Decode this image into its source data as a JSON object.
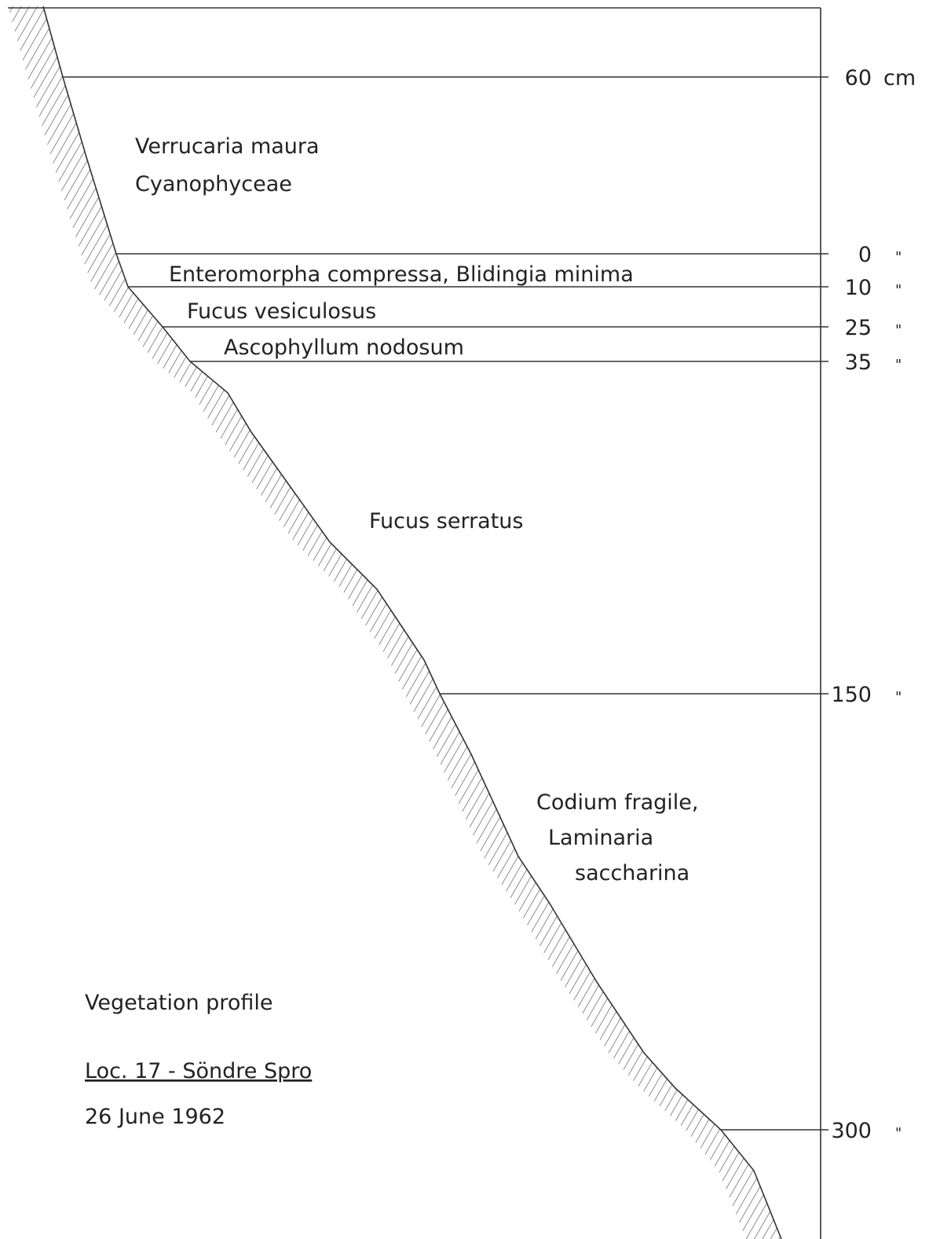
{
  "levels": [
    {
      "number": "60",
      "unit": "cm"
    },
    {
      "number": "0",
      "unit": "\""
    },
    {
      "number": "10",
      "unit": "\""
    },
    {
      "number": "25",
      "unit": "\""
    },
    {
      "number": "35",
      "unit": "\""
    },
    {
      "number": "150",
      "unit": "\""
    },
    {
      "number": "300",
      "unit": "\""
    }
  ],
  "zones": [
    {
      "lines": [
        "Verrucaria maura",
        "Cyanophyceae"
      ]
    },
    {
      "lines": [
        "Enteromorpha compressa, Blidingia minima"
      ]
    },
    {
      "lines": [
        "Fucus vesiculosus"
      ]
    },
    {
      "lines": [
        "Ascophyllum nodosum"
      ]
    },
    {
      "lines": [
        "Fucus serratus"
      ]
    },
    {
      "lines": [
        "Codium fragile,",
        "Laminaria",
        "saccharina"
      ]
    }
  ],
  "caption": {
    "title": "Vegetation profile",
    "location": "Loc. 17 - Söndre Spro",
    "date": "26 June 1962"
  }
}
